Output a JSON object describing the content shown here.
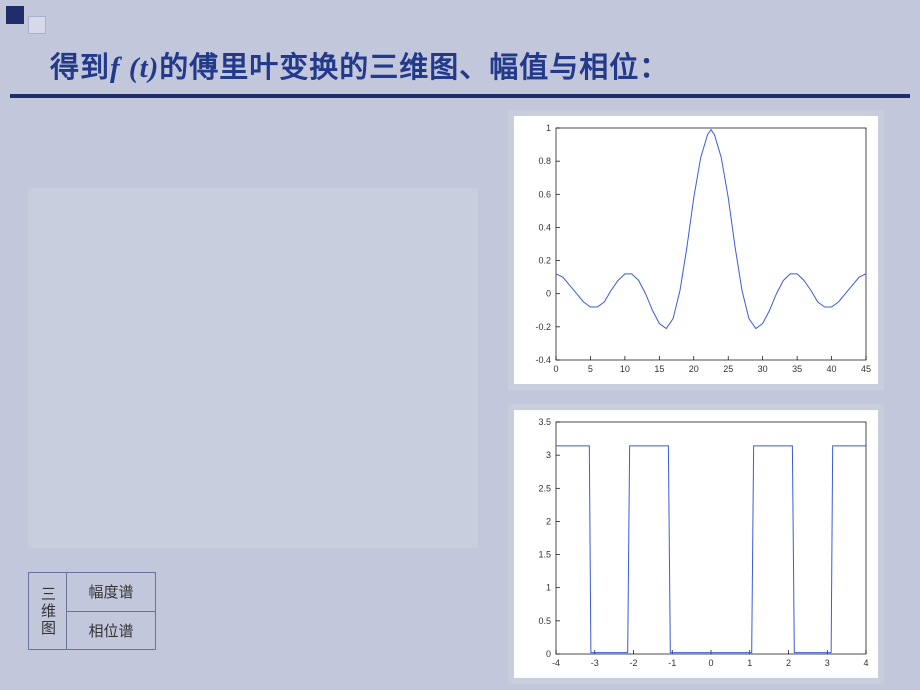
{
  "title": {
    "pre": "得到",
    "ft": "f (t)",
    "post": "的傅里叶变换的三维图、幅值与相位："
  },
  "legend": {
    "col1": "三维图",
    "row1": "幅度谱",
    "row2": "相位谱"
  },
  "chart_top": {
    "type": "line",
    "xlim": [
      0,
      45
    ],
    "ylim": [
      -0.4,
      1.0
    ],
    "xticks": [
      0,
      5,
      10,
      15,
      20,
      25,
      30,
      35,
      40,
      45
    ],
    "yticks": [
      -0.4,
      -0.2,
      0,
      0.2,
      0.4,
      0.6,
      0.8,
      1.0
    ],
    "line_color": "#3b5bdb",
    "line_width": 1,
    "background_color": "#ffffff",
    "grid_color": "#000000",
    "data": [
      [
        0,
        0.12
      ],
      [
        1,
        0.1
      ],
      [
        2,
        0.05
      ],
      [
        3,
        0.0
      ],
      [
        4,
        -0.05
      ],
      [
        5,
        -0.08
      ],
      [
        6,
        -0.08
      ],
      [
        7,
        -0.05
      ],
      [
        8,
        0.02
      ],
      [
        9,
        0.08
      ],
      [
        10,
        0.12
      ],
      [
        11,
        0.12
      ],
      [
        12,
        0.08
      ],
      [
        13,
        0.0
      ],
      [
        14,
        -0.1
      ],
      [
        15,
        -0.18
      ],
      [
        16,
        -0.21
      ],
      [
        17,
        -0.15
      ],
      [
        18,
        0.02
      ],
      [
        19,
        0.28
      ],
      [
        20,
        0.58
      ],
      [
        21,
        0.82
      ],
      [
        22,
        0.96
      ],
      [
        22.5,
        0.99
      ],
      [
        23,
        0.96
      ],
      [
        24,
        0.82
      ],
      [
        25,
        0.58
      ],
      [
        26,
        0.28
      ],
      [
        27,
        0.02
      ],
      [
        28,
        -0.15
      ],
      [
        29,
        -0.21
      ],
      [
        30,
        -0.18
      ],
      [
        31,
        -0.1
      ],
      [
        32,
        0.0
      ],
      [
        33,
        0.08
      ],
      [
        34,
        0.12
      ],
      [
        35,
        0.12
      ],
      [
        36,
        0.08
      ],
      [
        37,
        0.02
      ],
      [
        38,
        -0.05
      ],
      [
        39,
        -0.08
      ],
      [
        40,
        -0.08
      ],
      [
        41,
        -0.05
      ],
      [
        42,
        0.0
      ],
      [
        43,
        0.05
      ],
      [
        44,
        0.1
      ],
      [
        45,
        0.12
      ]
    ]
  },
  "chart_bottom": {
    "type": "line",
    "xlim": [
      -4,
      4
    ],
    "ylim": [
      0,
      3.5
    ],
    "xticks": [
      -4,
      -3,
      -2,
      -1,
      0,
      1,
      2,
      3,
      4
    ],
    "yticks": [
      0,
      0.5,
      1.0,
      1.5,
      2.0,
      2.5,
      3.0,
      3.5
    ],
    "line_color": "#3b5bdb",
    "line_width": 1,
    "pi_value": 3.14,
    "data": [
      [
        -4.0,
        3.14
      ],
      [
        -3.14,
        3.14
      ],
      [
        -3.1,
        0.02
      ],
      [
        -2.15,
        0.02
      ],
      [
        -2.1,
        3.14
      ],
      [
        -1.1,
        3.14
      ],
      [
        -1.05,
        0.02
      ],
      [
        -0.06,
        0.02
      ],
      [
        0.0,
        0.02
      ],
      [
        0.06,
        0.02
      ],
      [
        1.05,
        0.02
      ],
      [
        1.1,
        3.14
      ],
      [
        2.1,
        3.14
      ],
      [
        2.15,
        0.02
      ],
      [
        3.1,
        0.02
      ],
      [
        3.14,
        3.14
      ],
      [
        4.0,
        3.14
      ]
    ]
  }
}
